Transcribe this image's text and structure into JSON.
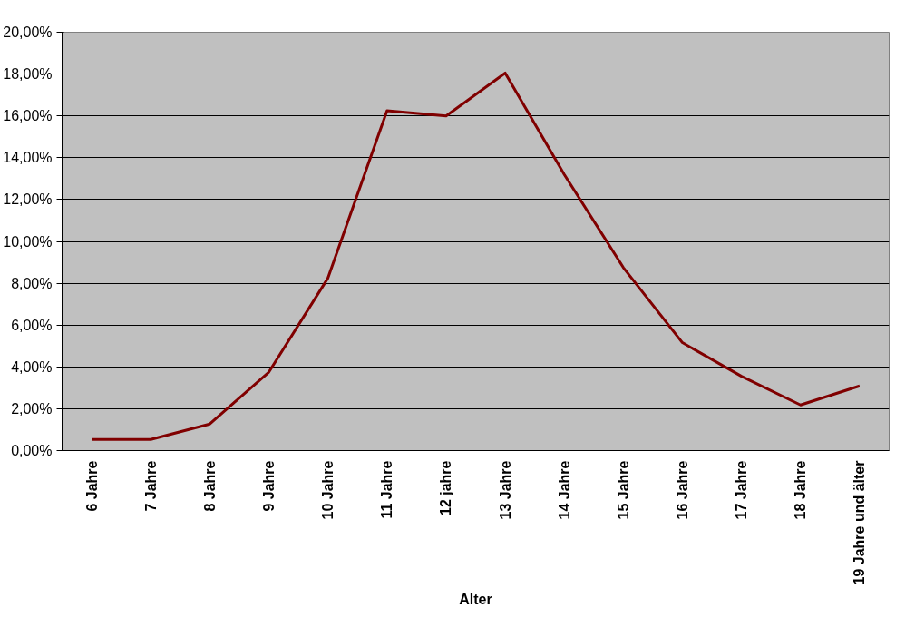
{
  "chart_data": {
    "type": "line",
    "xlabel": "Alter",
    "categories": [
      "6 Jahre",
      "7 Jahre",
      "8 Jahre",
      "9 Jahre",
      "10 Jahre",
      "11 Jahre",
      "12 jahre",
      "13 Jahre",
      "14 Jahre",
      "15 Jahre",
      "16 Jahre",
      "17 Jahre",
      "18 Jahre",
      "19 Jahre und älter"
    ],
    "series": [
      {
        "color": "#800000",
        "values": [
          0.53,
          0.53,
          1.27,
          3.75,
          8.25,
          16.25,
          16.0,
          18.05,
          13.2,
          8.75,
          5.16,
          3.55,
          2.18,
          3.09
        ]
      }
    ],
    "ylim": [
      0,
      20
    ],
    "yticks": [
      {
        "value": 0,
        "label": "0,00%"
      },
      {
        "value": 2,
        "label": "2,00%"
      },
      {
        "value": 4,
        "label": "4,00%"
      },
      {
        "value": 6,
        "label": "6,00%"
      },
      {
        "value": 8,
        "label": "8,00%"
      },
      {
        "value": 10,
        "label": "10,00%"
      },
      {
        "value": 12,
        "label": "12,00%"
      },
      {
        "value": 14,
        "label": "14,00%"
      },
      {
        "value": 16,
        "label": "16,00%"
      },
      {
        "value": 18,
        "label": "18,00%"
      },
      {
        "value": 20,
        "label": "20,00%"
      }
    ],
    "grid": "y",
    "marker": "none",
    "line_style": "solid"
  }
}
